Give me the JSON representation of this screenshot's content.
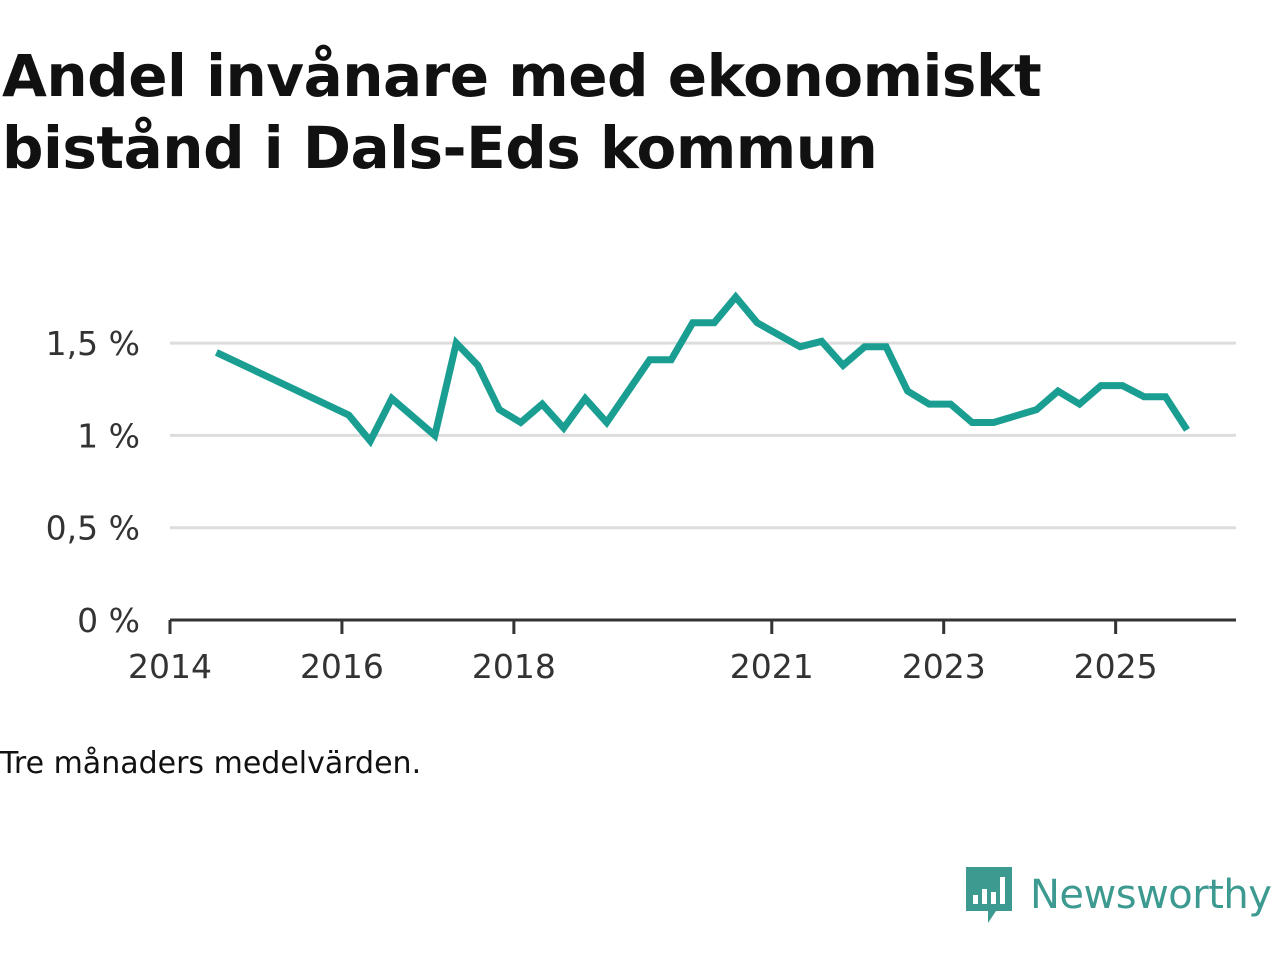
{
  "title": "Andel invånare med ekonomiskt bistånd i Dals-Eds kommun",
  "caption": "Tre månaders medelvärden.",
  "brand": {
    "name": "Newsworthy",
    "icon": "bar-chart-speech-bubble-icon",
    "color": "#3d9a90"
  },
  "colors": {
    "line": "#1a9e92",
    "grid": "#dddddd",
    "axis": "#333333"
  },
  "chart_data": {
    "type": "line",
    "title": "Andel invånare med ekonomiskt bistånd i Dals-Eds kommun",
    "xlabel": "",
    "ylabel": "",
    "ylim": [
      0,
      1.75
    ],
    "xlim": [
      2014.0,
      2026.4
    ],
    "y_ticks": [
      {
        "value": 0,
        "label": "0 %"
      },
      {
        "value": 0.5,
        "label": "0,5 %"
      },
      {
        "value": 1,
        "label": "1 %"
      },
      {
        "value": 1.5,
        "label": "1,5 %"
      }
    ],
    "x_ticks": [
      {
        "value": 2014,
        "label": "2014"
      },
      {
        "value": 2016,
        "label": "2016"
      },
      {
        "value": 2018,
        "label": "2018"
      },
      {
        "value": 2021,
        "label": "2021"
      },
      {
        "value": 2023,
        "label": "2023"
      },
      {
        "value": 2025,
        "label": "2025"
      }
    ],
    "grid": true,
    "series": [
      {
        "name": "Andel invånare med ekonomiskt bistånd",
        "x": [
          2014.54,
          2016.08,
          2016.33,
          2016.58,
          2017.08,
          2017.33,
          2017.58,
          2017.83,
          2018.08,
          2018.33,
          2018.58,
          2018.83,
          2019.08,
          2019.58,
          2019.83,
          2020.08,
          2020.33,
          2020.58,
          2020.83,
          2021.33,
          2021.58,
          2021.83,
          2022.08,
          2022.33,
          2022.58,
          2022.83,
          2023.08,
          2023.33,
          2023.58,
          2024.08,
          2024.33,
          2024.58,
          2024.83,
          2025.08,
          2025.33,
          2025.58,
          2025.83
        ],
        "values": [
          1.45,
          1.11,
          0.97,
          1.2,
          1.0,
          1.5,
          1.38,
          1.14,
          1.07,
          1.17,
          1.04,
          1.2,
          1.07,
          1.41,
          1.41,
          1.61,
          1.61,
          1.75,
          1.61,
          1.48,
          1.51,
          1.38,
          1.48,
          1.48,
          1.24,
          1.17,
          1.17,
          1.07,
          1.07,
          1.14,
          1.24,
          1.17,
          1.27,
          1.27,
          1.21,
          1.21,
          1.03
        ]
      }
    ]
  }
}
